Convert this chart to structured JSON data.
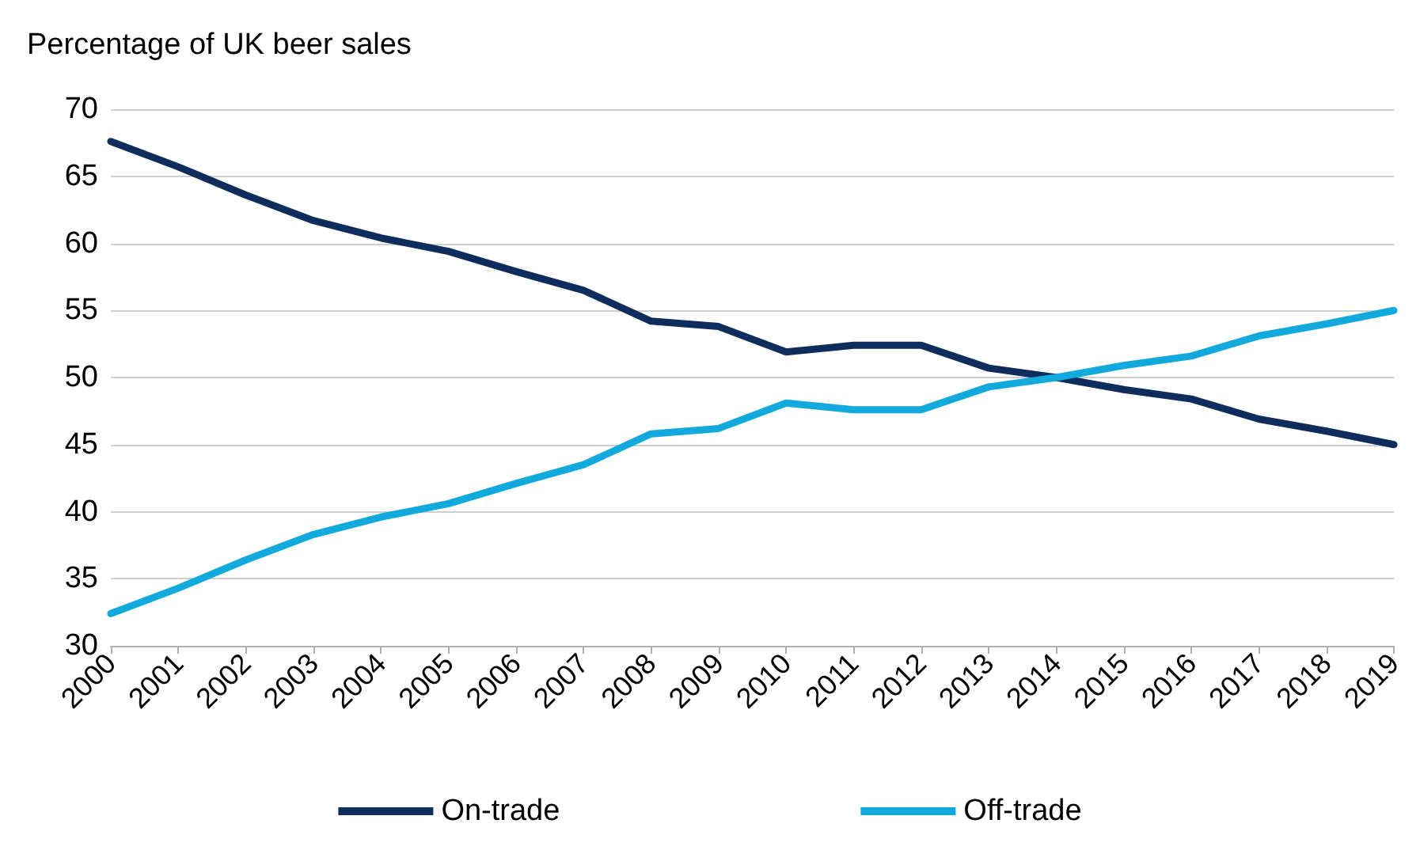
{
  "chart_data": {
    "type": "line",
    "ylabel": "Percentage of UK beer sales",
    "categories": [
      "2000",
      "2001",
      "2002",
      "2003",
      "2004",
      "2005",
      "2006",
      "2007",
      "2008",
      "2009",
      "2010",
      "2011",
      "2012",
      "2013",
      "2014",
      "2015",
      "2016",
      "2017",
      "2018",
      "2019"
    ],
    "series": [
      {
        "name": "On-trade",
        "color": "#0f2d5c",
        "values": [
          67.6,
          65.7,
          63.6,
          61.7,
          60.4,
          59.4,
          57.9,
          56.5,
          54.2,
          53.8,
          51.9,
          52.4,
          52.4,
          50.7,
          50.0,
          49.1,
          48.4,
          46.9,
          46.0,
          45.0
        ]
      },
      {
        "name": "Off-trade",
        "color": "#12a9dc",
        "values": [
          32.4,
          34.3,
          36.4,
          38.3,
          39.6,
          40.6,
          42.1,
          43.5,
          45.8,
          46.2,
          48.1,
          47.6,
          47.6,
          49.3,
          50.0,
          50.9,
          51.6,
          53.1,
          54.0,
          55.0
        ]
      }
    ],
    "ylim": [
      30,
      70
    ],
    "yticks": [
      30,
      35,
      40,
      45,
      50,
      55,
      60,
      65,
      70
    ],
    "grid": "y",
    "legend": "bottom",
    "marker": "none",
    "line_style": "solid"
  }
}
